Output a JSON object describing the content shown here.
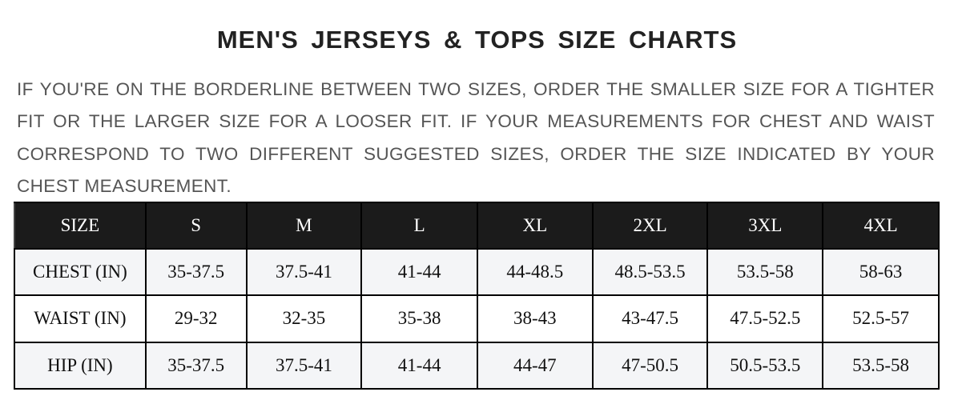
{
  "title": "MEN'S JERSEYS & TOPS SIZE CHARTS",
  "note": "IF YOU'RE ON THE BORDERLINE BETWEEN TWO SIZES, ORDER THE SMALLER SIZE FOR A TIGHTER FIT OR THE LARGER SIZE FOR A LOOSER FIT. IF YOUR MEASUREMENTS FOR CHEST AND WAIST CORRESPOND TO TWO DIFFERENT SUGGESTED SIZES, ORDER THE SIZE INDICATED BY YOUR CHEST MEASUREMENT.",
  "table": {
    "headers": [
      "SIZE",
      "S",
      "M",
      "L",
      "XL",
      "2XL",
      "3XL",
      "4XL"
    ],
    "rows": [
      [
        "CHEST (IN)",
        "35-37.5",
        "37.5-41",
        "41-44",
        "44-48.5",
        "48.5-53.5",
        "53.5-58",
        "58-63"
      ],
      [
        "WAIST (IN)",
        "29-32",
        "32-35",
        "35-38",
        "38-43",
        "43-47.5",
        "47.5-52.5",
        "52.5-57"
      ],
      [
        "HIP (IN)",
        "35-37.5",
        "37.5-41",
        "41-44",
        "44-47",
        "47-50.5",
        "50.5-53.5",
        "53.5-58"
      ]
    ]
  },
  "colors": {
    "header_bg": "#1b1b1b",
    "row_alt_bg": "#f4f5f7",
    "note_text": "#555555"
  }
}
